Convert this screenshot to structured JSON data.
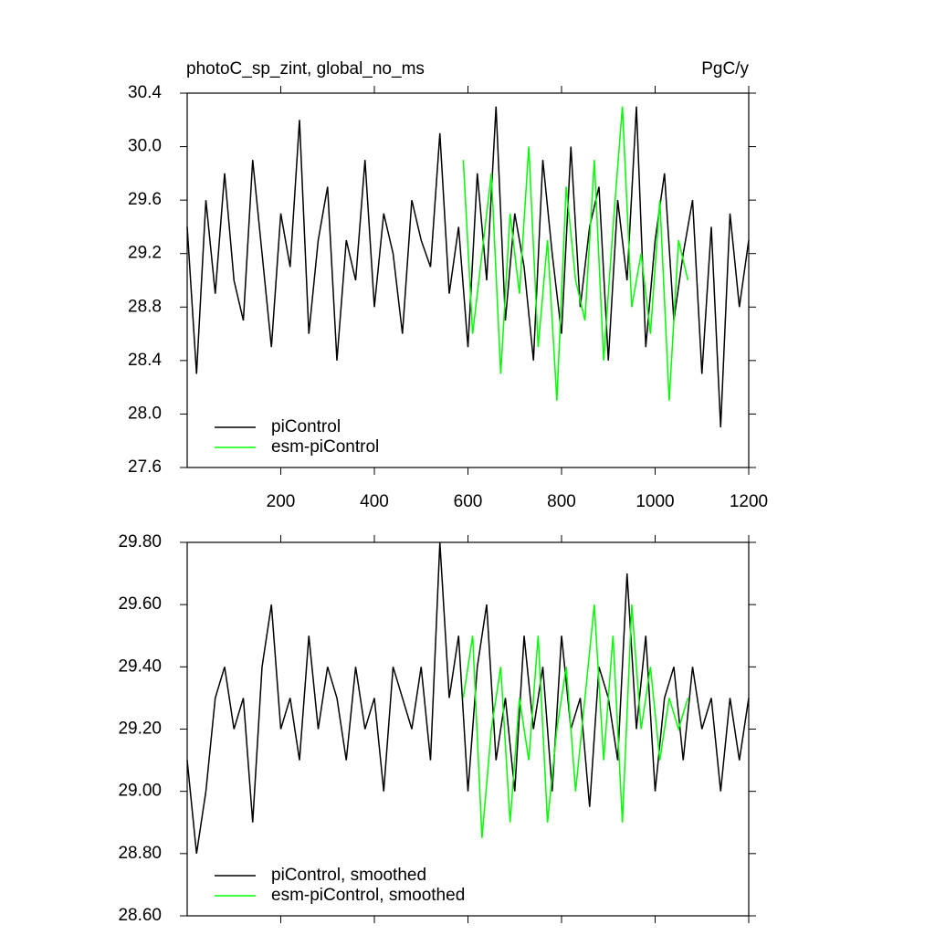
{
  "chart_data": [
    {
      "type": "line",
      "title": "photoC_sp_zint, global_no_ms",
      "right_title": "PgC/y",
      "xlim": [
        0,
        1200
      ],
      "xticks": [
        200,
        400,
        600,
        800,
        1000,
        1200
      ],
      "show_xtick_labels": true,
      "ylim": [
        27.6,
        30.4
      ],
      "yticks": [
        {
          "value": 27.6,
          "label": "27.6"
        },
        {
          "value": 28.0,
          "label": "28.0"
        },
        {
          "value": 28.4,
          "label": "28.4"
        },
        {
          "value": 28.8,
          "label": "28.8"
        },
        {
          "value": 29.2,
          "label": "29.2"
        },
        {
          "value": 29.6,
          "label": "29.6"
        },
        {
          "value": 30.0,
          "label": "30.0"
        },
        {
          "value": 30.4,
          "label": "30.4"
        }
      ],
      "legend": "lower left",
      "series": [
        {
          "name": "piControl",
          "color": "#000000",
          "x": [
            0,
            20,
            40,
            60,
            80,
            100,
            120,
            140,
            160,
            180,
            200,
            220,
            240,
            260,
            280,
            300,
            320,
            340,
            360,
            380,
            400,
            420,
            440,
            460,
            480,
            500,
            520,
            540,
            560,
            580,
            600,
            620,
            640,
            660,
            680,
            700,
            720,
            740,
            760,
            780,
            800,
            820,
            840,
            860,
            880,
            900,
            920,
            940,
            960,
            980,
            1000,
            1020,
            1040,
            1060,
            1080,
            1100,
            1120,
            1140,
            1160,
            1180,
            1200
          ],
          "values": [
            29.4,
            28.3,
            29.6,
            28.9,
            29.8,
            29.0,
            28.7,
            29.9,
            29.2,
            28.5,
            29.5,
            29.1,
            30.2,
            28.6,
            29.3,
            29.7,
            28.4,
            29.3,
            29.0,
            29.9,
            28.8,
            29.5,
            29.2,
            28.6,
            29.6,
            29.3,
            29.1,
            30.1,
            28.9,
            29.4,
            28.5,
            29.8,
            29.0,
            30.3,
            28.7,
            29.5,
            29.1,
            28.4,
            29.9,
            29.2,
            28.6,
            30.0,
            28.8,
            29.4,
            29.7,
            28.4,
            29.6,
            29.0,
            30.3,
            28.5,
            29.3,
            29.8,
            28.7,
            29.2,
            29.6,
            28.3,
            29.4,
            27.9,
            29.5,
            28.8,
            29.3
          ]
        },
        {
          "name": "esm-piControl",
          "color": "#00ff00",
          "x": [
            590,
            610,
            630,
            650,
            670,
            690,
            710,
            730,
            750,
            770,
            790,
            810,
            830,
            850,
            870,
            890,
            910,
            930,
            950,
            970,
            990,
            1010,
            1030,
            1050,
            1070
          ],
          "values": [
            29.9,
            28.6,
            29.2,
            29.8,
            28.3,
            29.5,
            28.9,
            30.0,
            28.5,
            29.3,
            28.1,
            29.7,
            29.0,
            28.7,
            29.9,
            28.4,
            29.4,
            30.3,
            28.8,
            29.2,
            28.6,
            29.6,
            28.1,
            29.3,
            29.0
          ]
        }
      ]
    },
    {
      "type": "line",
      "xlim": [
        0,
        1200
      ],
      "xticks": [
        200,
        400,
        600,
        800,
        1000,
        1200
      ],
      "show_xtick_labels": false,
      "ylim": [
        28.6,
        29.8
      ],
      "yticks": [
        {
          "value": 28.6,
          "label": "28.60"
        },
        {
          "value": 28.8,
          "label": "28.80"
        },
        {
          "value": 29.0,
          "label": "29.00"
        },
        {
          "value": 29.2,
          "label": "29.20"
        },
        {
          "value": 29.4,
          "label": "29.40"
        },
        {
          "value": 29.6,
          "label": "29.60"
        },
        {
          "value": 29.8,
          "label": "29.80"
        }
      ],
      "legend": "lower left",
      "series": [
        {
          "name": "piControl, smoothed",
          "color": "#000000",
          "x": [
            0,
            20,
            40,
            60,
            80,
            100,
            120,
            140,
            160,
            180,
            200,
            220,
            240,
            260,
            280,
            300,
            320,
            340,
            360,
            380,
            400,
            420,
            440,
            460,
            480,
            500,
            520,
            540,
            560,
            580,
            600,
            620,
            640,
            660,
            680,
            700,
            720,
            740,
            760,
            780,
            800,
            820,
            840,
            860,
            880,
            900,
            920,
            940,
            960,
            980,
            1000,
            1020,
            1040,
            1060,
            1080,
            1100,
            1120,
            1140,
            1160,
            1180,
            1200
          ],
          "values": [
            29.1,
            28.8,
            29.0,
            29.3,
            29.4,
            29.2,
            29.3,
            28.9,
            29.4,
            29.6,
            29.2,
            29.3,
            29.1,
            29.5,
            29.2,
            29.4,
            29.3,
            29.1,
            29.4,
            29.2,
            29.3,
            29.0,
            29.4,
            29.3,
            29.2,
            29.4,
            29.1,
            29.8,
            29.3,
            29.5,
            29.0,
            29.4,
            29.6,
            29.1,
            29.3,
            29.0,
            29.5,
            29.2,
            29.4,
            29.0,
            29.5,
            29.2,
            29.3,
            28.95,
            29.4,
            29.3,
            29.1,
            29.7,
            29.2,
            29.5,
            29.0,
            29.3,
            29.4,
            29.1,
            29.4,
            29.2,
            29.3,
            29.0,
            29.3,
            29.1,
            29.3
          ]
        },
        {
          "name": "esm-piControl, smoothed",
          "color": "#00ff00",
          "x": [
            590,
            610,
            630,
            650,
            670,
            690,
            710,
            730,
            750,
            770,
            790,
            810,
            830,
            850,
            870,
            890,
            910,
            930,
            950,
            970,
            990,
            1010,
            1030,
            1050,
            1070
          ],
          "values": [
            29.3,
            29.5,
            28.85,
            29.2,
            29.4,
            28.9,
            29.3,
            29.1,
            29.5,
            28.9,
            29.2,
            29.4,
            29.0,
            29.3,
            29.6,
            29.1,
            29.5,
            28.9,
            29.6,
            29.2,
            29.4,
            29.1,
            29.3,
            29.2,
            29.3
          ]
        }
      ]
    }
  ]
}
